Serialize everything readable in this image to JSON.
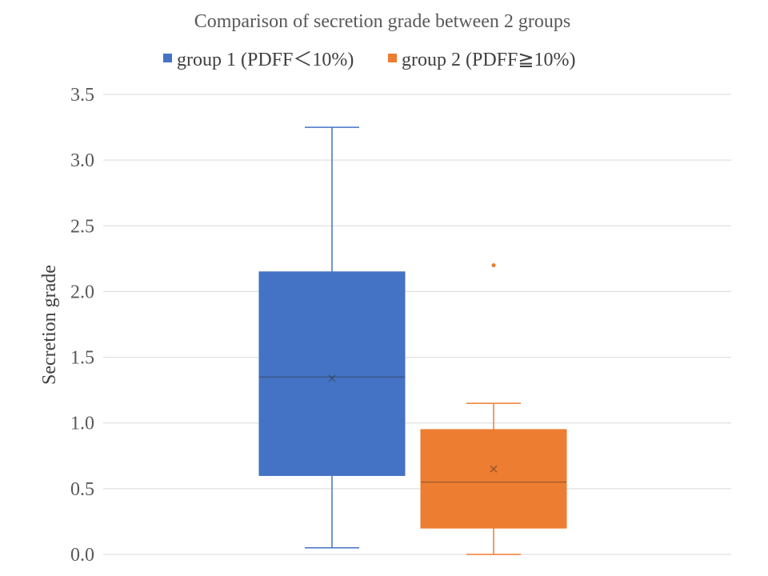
{
  "chart_data": {
    "type": "box",
    "title": "Comparison of secretion grade between 2 groups",
    "xlabel": "",
    "ylabel": "Secretion grade",
    "ylim": [
      0,
      3.5
    ],
    "yticks": [
      0.0,
      0.5,
      1.0,
      1.5,
      2.0,
      2.5,
      3.0,
      3.5
    ],
    "ytick_labels": [
      "0.0",
      "0.5",
      "1.0",
      "1.5",
      "2.0",
      "2.5",
      "3.0",
      "3.5"
    ],
    "grid": true,
    "legend_position": "top",
    "series": [
      {
        "name": "group 1 (PDFF＜10%)",
        "color": "#4472C4",
        "whisker_low": 0.05,
        "q1": 0.6,
        "median": 1.35,
        "q3": 2.15,
        "whisker_high": 3.25,
        "mean": 1.34,
        "outliers": []
      },
      {
        "name": "group 2 (PDFF≧10%)",
        "color": "#ED7D31",
        "whisker_low": 0.0,
        "q1": 0.2,
        "median": 0.55,
        "q3": 0.95,
        "whisker_high": 1.15,
        "mean": 0.65,
        "outliers": [
          2.2
        ]
      }
    ]
  }
}
